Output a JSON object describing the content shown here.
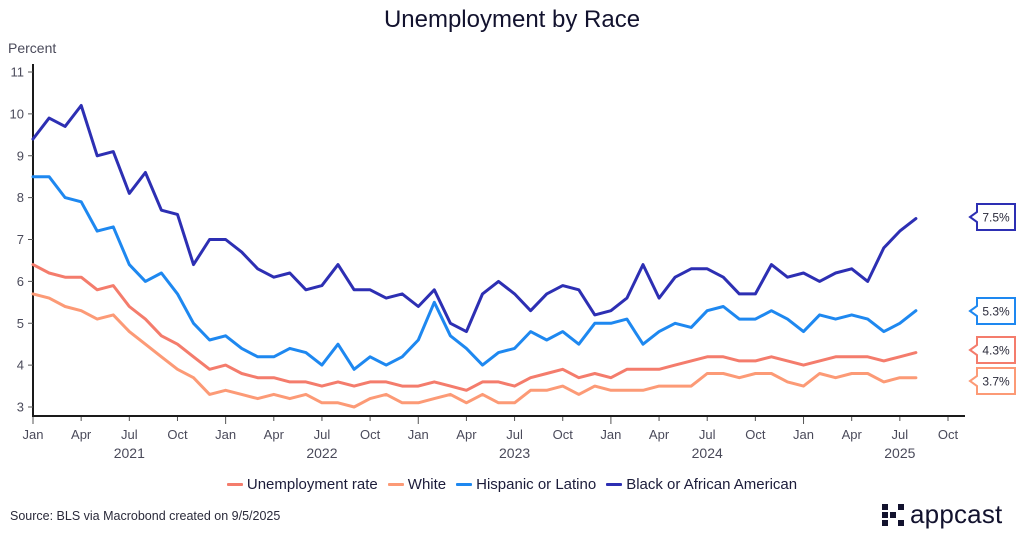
{
  "chart_data": {
    "type": "line",
    "title": "Unemployment by Race",
    "ylabel": "Percent",
    "xlabel": "",
    "ylim": [
      3,
      11
    ],
    "yticks": [
      3,
      4,
      5,
      6,
      7,
      8,
      9,
      10,
      11
    ],
    "x_start": "2021-01",
    "x_range": [
      "2021-01",
      "2025-10"
    ],
    "frequency": "monthly",
    "xtick_labels": [
      "Jan",
      "Apr",
      "Jul",
      "Oct",
      "Jan",
      "Apr",
      "Jul",
      "Oct",
      "Jan",
      "Apr",
      "Jul",
      "Oct",
      "Jan",
      "Apr",
      "Jul",
      "Oct",
      "Jan",
      "Apr",
      "Jul",
      "Oct"
    ],
    "year_labels": [
      "2021",
      "2022",
      "2023",
      "2024",
      "2025"
    ],
    "grid": false,
    "legend_position": "bottom",
    "series": [
      {
        "name": "Unemployment rate",
        "color": "#f47c6c",
        "end_label": "4.3%",
        "values": [
          6.4,
          6.2,
          6.1,
          6.1,
          5.8,
          5.9,
          5.4,
          5.1,
          4.7,
          4.5,
          4.2,
          3.9,
          4.0,
          3.8,
          3.7,
          3.7,
          3.6,
          3.6,
          3.5,
          3.6,
          3.5,
          3.6,
          3.6,
          3.5,
          3.5,
          3.6,
          3.5,
          3.4,
          3.6,
          3.6,
          3.5,
          3.7,
          3.8,
          3.9,
          3.7,
          3.8,
          3.7,
          3.9,
          3.9,
          3.9,
          4.0,
          4.1,
          4.2,
          4.2,
          4.1,
          4.1,
          4.2,
          4.1,
          4.0,
          4.1,
          4.2,
          4.2,
          4.2,
          4.1,
          4.2,
          4.3
        ]
      },
      {
        "name": "White",
        "color": "#fc9a76",
        "end_label": "3.7%",
        "values": [
          5.7,
          5.6,
          5.4,
          5.3,
          5.1,
          5.2,
          4.8,
          4.5,
          4.2,
          3.9,
          3.7,
          3.3,
          3.4,
          3.3,
          3.2,
          3.3,
          3.2,
          3.3,
          3.1,
          3.1,
          3.0,
          3.2,
          3.3,
          3.1,
          3.1,
          3.2,
          3.3,
          3.1,
          3.3,
          3.1,
          3.1,
          3.4,
          3.4,
          3.5,
          3.3,
          3.5,
          3.4,
          3.4,
          3.4,
          3.5,
          3.5,
          3.5,
          3.8,
          3.8,
          3.7,
          3.8,
          3.8,
          3.6,
          3.5,
          3.8,
          3.7,
          3.8,
          3.8,
          3.6,
          3.7,
          3.7
        ]
      },
      {
        "name": "Hispanic or Latino",
        "color": "#1e88f0",
        "end_label": "5.3%",
        "values": [
          8.5,
          8.5,
          8.0,
          7.9,
          7.2,
          7.3,
          6.4,
          6.0,
          6.2,
          5.7,
          5.0,
          4.6,
          4.7,
          4.4,
          4.2,
          4.2,
          4.4,
          4.3,
          4.0,
          4.5,
          3.9,
          4.2,
          4.0,
          4.2,
          4.6,
          5.5,
          4.7,
          4.4,
          4.0,
          4.3,
          4.4,
          4.8,
          4.6,
          4.8,
          4.5,
          5.0,
          5.0,
          5.1,
          4.5,
          4.8,
          5.0,
          4.9,
          5.3,
          5.4,
          5.1,
          5.1,
          5.3,
          5.1,
          4.8,
          5.2,
          5.1,
          5.2,
          5.1,
          4.8,
          5.0,
          5.3
        ]
      },
      {
        "name": "Black or African American",
        "color": "#2d2fb3",
        "end_label": "7.5%",
        "values": [
          9.4,
          9.9,
          9.7,
          10.2,
          9.0,
          9.1,
          8.1,
          8.6,
          7.7,
          7.6,
          6.4,
          7.0,
          7.0,
          6.7,
          6.3,
          6.1,
          6.2,
          5.8,
          5.9,
          6.4,
          5.8,
          5.8,
          5.6,
          5.7,
          5.4,
          5.8,
          5.0,
          4.8,
          5.7,
          6.0,
          5.7,
          5.3,
          5.7,
          5.9,
          5.8,
          5.2,
          5.3,
          5.6,
          6.4,
          5.6,
          6.1,
          6.3,
          6.3,
          6.1,
          5.7,
          5.7,
          6.4,
          6.1,
          6.2,
          6.0,
          6.2,
          6.3,
          6.0,
          6.8,
          7.2,
          7.5
        ]
      }
    ]
  },
  "footer": {
    "source": "Source: BLS via Macrobond created on 9/5/2025",
    "brand": "appcast"
  }
}
